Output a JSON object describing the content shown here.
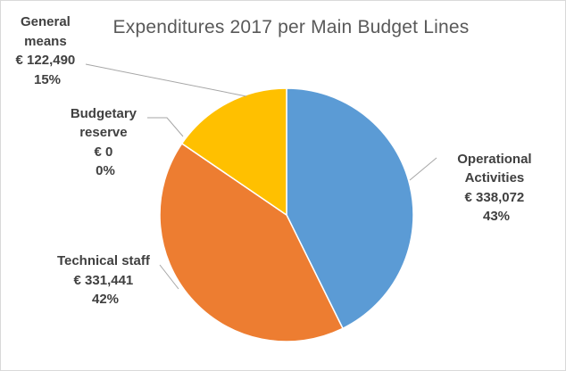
{
  "chart_data": {
    "type": "pie",
    "title": "Expenditures 2017 per Main Budget Lines",
    "slices": [
      {
        "label": "Operational Activities",
        "value_text": "€ 338,072",
        "value": 338072,
        "percent": "43%",
        "color": "#5b9bd5"
      },
      {
        "label": "Technical staff",
        "value_text": "€ 331,441",
        "value": 331441,
        "percent": "42%",
        "color": "#ed7d31"
      },
      {
        "label": "Budgetary reserve",
        "value_text": "€ 0",
        "value": 0,
        "percent": "0%",
        "color": "#a5a5a5"
      },
      {
        "label": "General means",
        "value_text": "€ 122,490",
        "value": 122490,
        "percent": "15%",
        "color": "#ffc000"
      }
    ],
    "legend": "none"
  },
  "labels": [
    {
      "lines": [
        "Operational",
        "Activities",
        "€ 338,072",
        "43%"
      ]
    },
    {
      "lines": [
        "Technical staff",
        "€ 331,441",
        "42%"
      ]
    },
    {
      "lines": [
        "Budgetary",
        "reserve",
        "€ 0",
        "0%"
      ]
    },
    {
      "lines": [
        "General",
        "means",
        "€ 122,490",
        "15%"
      ]
    }
  ]
}
